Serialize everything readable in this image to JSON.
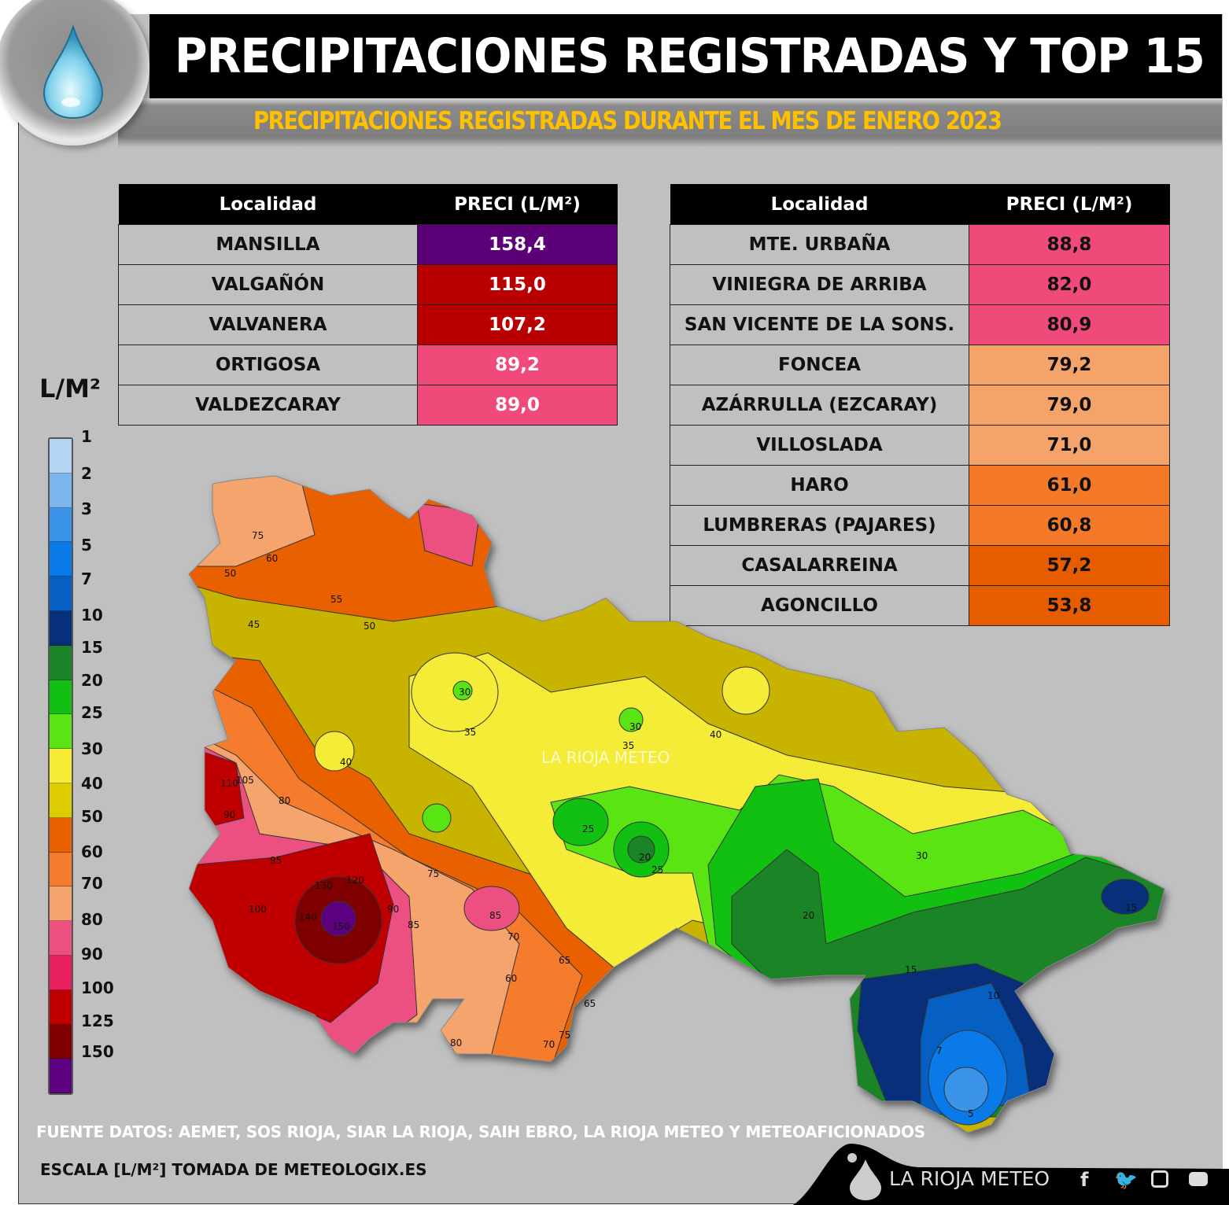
{
  "header": {
    "title": "PRECIPITACIONES REGISTRADAS Y TOP 15",
    "subtitle": "PRECIPITACIONES REGISTRADAS DURANTE EL MES DE ENERO 2023",
    "icon": "water-drop-icon"
  },
  "table_left": {
    "headers": [
      "Localidad",
      "PRECI (L/M²)"
    ],
    "rows": [
      {
        "loc": "MANSILLA",
        "val": "158,4",
        "color": "#5c0078",
        "text": "#ffffff"
      },
      {
        "loc": "VALGAÑÓN",
        "val": "115,0",
        "color": "#b80000",
        "text": "#ffffff"
      },
      {
        "loc": "VALVANERA",
        "val": "107,2",
        "color": "#b80000",
        "text": "#ffffff"
      },
      {
        "loc": "ORTIGOSA",
        "val": "89,2",
        "color": "#f04a7a",
        "text": "#ffffff"
      },
      {
        "loc": "VALDEZCARAY",
        "val": "89,0",
        "color": "#f04a7a",
        "text": "#ffffff"
      }
    ]
  },
  "table_right": {
    "headers": [
      "Localidad",
      "PRECI (L/M²)"
    ],
    "rows": [
      {
        "loc": "MTE. URBAÑA",
        "val": "88,8",
        "color": "#f04a7a",
        "text": "#111111"
      },
      {
        "loc": "VINIEGRA DE ARRIBA",
        "val": "82,0",
        "color": "#f04a7a",
        "text": "#111111"
      },
      {
        "loc": "SAN VICENTE DE LA SONS.",
        "val": "80,9",
        "color": "#f04a7a",
        "text": "#111111"
      },
      {
        "loc": "FONCEA",
        "val": "79,2",
        "color": "#f4a46a",
        "text": "#111111"
      },
      {
        "loc": "AZÁRRULLA (EZCARAY)",
        "val": "79,0",
        "color": "#f4a46a",
        "text": "#111111"
      },
      {
        "loc": "VILLOSLADA",
        "val": "71,0",
        "color": "#f4a46a",
        "text": "#111111"
      },
      {
        "loc": "HARO",
        "val": "61,0",
        "color": "#f47a2a",
        "text": "#111111"
      },
      {
        "loc": "LUMBRERAS (PAJARES)",
        "val": "60,8",
        "color": "#f47a2a",
        "text": "#111111"
      },
      {
        "loc": "CASALARREINA",
        "val": "57,2",
        "color": "#e85c00",
        "text": "#111111"
      },
      {
        "loc": "AGONCILLO",
        "val": "53,8",
        "color": "#e85c00",
        "text": "#111111"
      }
    ]
  },
  "legend": {
    "title": "L/M²",
    "labels": [
      "1",
      "2",
      "3",
      "5",
      "7",
      "10",
      "15",
      "20",
      "25",
      "30",
      "40",
      "50",
      "60",
      "70",
      "80",
      "90",
      "100",
      "125",
      "150"
    ],
    "colors": [
      "#b4d4f4",
      "#7cb4ec",
      "#3c94e8",
      "#0a7ae8",
      "#0660c4",
      "#08307a",
      "#1a8426",
      "#12c012",
      "#5ae414",
      "#f4ec36",
      "#dccc00",
      "#e86000",
      "#f47c2c",
      "#f4a46c",
      "#ec5080",
      "#e82060",
      "#c00000",
      "#800000",
      "#5c0080"
    ]
  },
  "map": {
    "watermark": "LA RIOJA METEO",
    "contour_labels": [
      "75",
      "60",
      "50",
      "55",
      "45",
      "50",
      "40",
      "30",
      "35",
      "30",
      "40",
      "35",
      "30",
      "25",
      "20",
      "25",
      "20",
      "15",
      "10",
      "7",
      "5",
      "15",
      "90",
      "95",
      "100",
      "130",
      "140",
      "150",
      "120",
      "90",
      "85",
      "80",
      "75",
      "70",
      "65",
      "60",
      "65",
      "70",
      "75",
      "80",
      "85",
      "110",
      "105"
    ]
  },
  "footer": {
    "source": "FUENTE DATOS: AEMET, SOS RIOJA, SIAR LA RIOJA, SAIH EBRO, LA RIOJA METEO  Y METEOAFICIONADOS",
    "scale": "ESCALA [L/M²] TOMADA DE METEOLOGIX.ES",
    "brand": "LA RIOJA METEO",
    "social": [
      "facebook-icon",
      "twitter-icon",
      "instagram-icon",
      "youtube-icon"
    ]
  }
}
